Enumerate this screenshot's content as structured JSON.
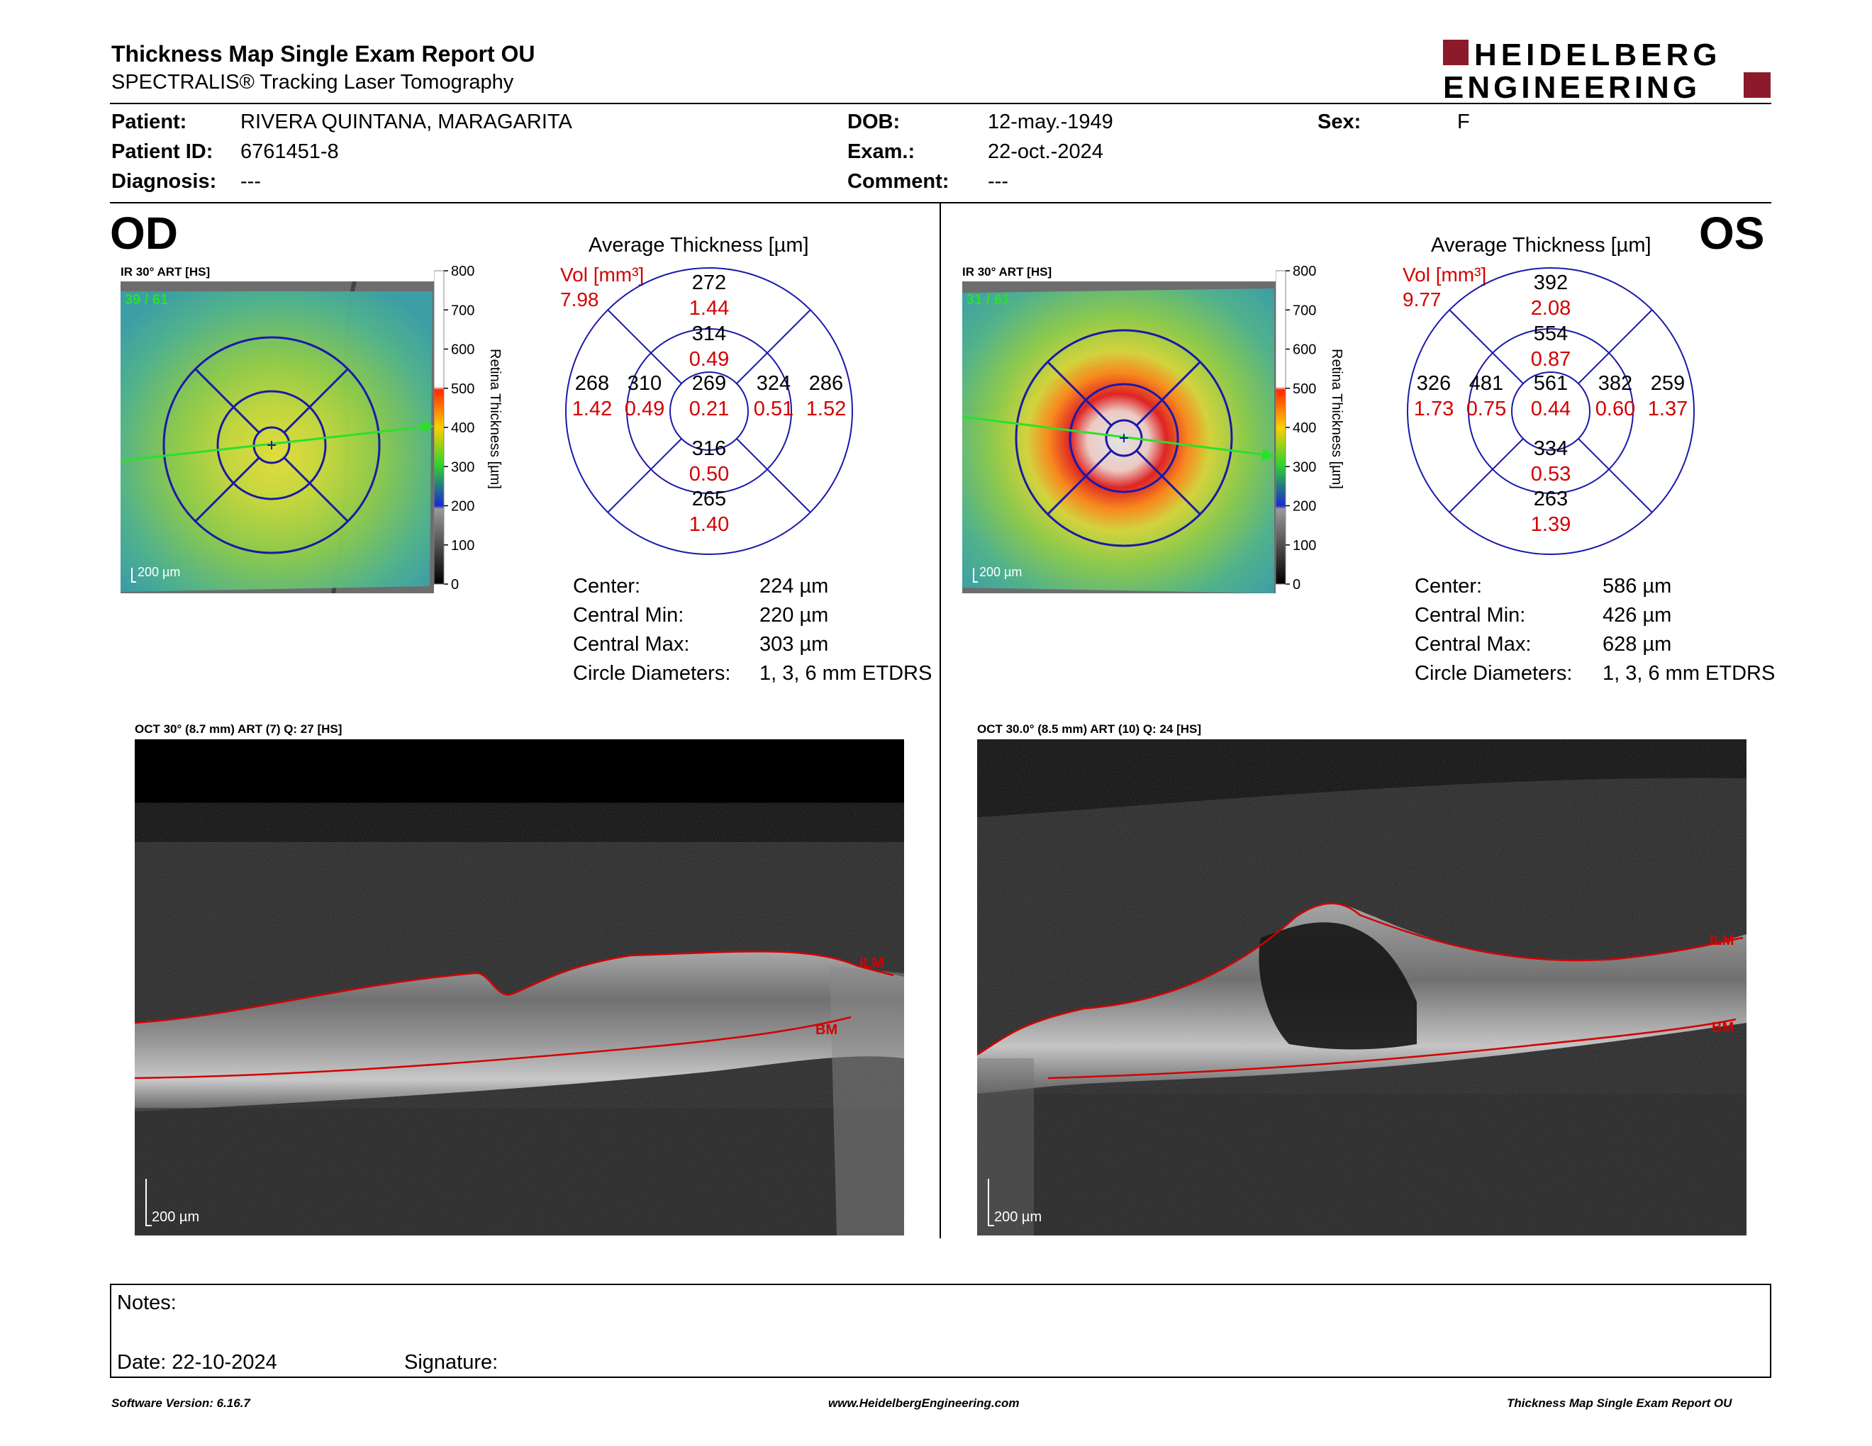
{
  "header": {
    "title": "Thickness Map Single Exam Report OU",
    "subtitle": "SPECTRALIS® Tracking Laser Tomography",
    "logo_line1": "HEIDELBERG",
    "logo_line2": "ENGINEERING",
    "colors": {
      "logo_red": "#8b1a2b",
      "vol_red": "#d40000",
      "grid_blue": "#1a1aa8",
      "ilm_red": "#d40000"
    }
  },
  "patient": {
    "patient_label": "Patient:",
    "patient_value": "RIVERA QUINTANA, MARAGARITA",
    "id_label": "Patient ID:",
    "id_value": "6761451-8",
    "diag_label": "Diagnosis:",
    "diag_value": "---",
    "dob_label": "DOB:",
    "dob_value": "12-may.-1949",
    "exam_label": "Exam.:",
    "exam_value": "22-oct.-2024",
    "comment_label": "Comment:",
    "comment_value": "---",
    "sex_label": "Sex:",
    "sex_value": "F"
  },
  "od": {
    "eye": "OD",
    "ir_label": "IR 30° ART [HS]",
    "frame_label": "39 / 61",
    "scale": "200 µm",
    "colorbar": {
      "ticks": [
        "800",
        "700",
        "600",
        "500",
        "400",
        "300",
        "200",
        "100",
        "0"
      ],
      "axis": "Retina Thickness [µm]"
    },
    "avg_title": "Average Thickness [µm]",
    "vol_label": "Vol [mm³]",
    "vol_total": "7.98",
    "etdrs": {
      "center": {
        "t": "269",
        "v": "0.21"
      },
      "inner_sup": {
        "t": "314",
        "v": "0.49"
      },
      "inner_inf": {
        "t": "316",
        "v": "0.50"
      },
      "inner_left": {
        "t": "310",
        "v": "0.49"
      },
      "inner_right": {
        "t": "324",
        "v": "0.51"
      },
      "outer_sup": {
        "t": "272",
        "v": "1.44"
      },
      "outer_inf": {
        "t": "265",
        "v": "1.40"
      },
      "outer_left": {
        "t": "268",
        "v": "1.42"
      },
      "outer_right": {
        "t": "286",
        "v": "1.52"
      }
    },
    "stats": [
      {
        "label": "Center:",
        "value": "224 µm"
      },
      {
        "label": "Central Min:",
        "value": "220 µm"
      },
      {
        "label": "Central Max:",
        "value": "303 µm"
      },
      {
        "label": "Circle Diameters:",
        "value": "1, 3, 6 mm ETDRS"
      }
    ],
    "oct_label": "OCT 30° (8.7 mm) ART (7) Q: 27 [HS]",
    "ilm": "ILM",
    "bm": "BM",
    "oct_scale": "200 µm"
  },
  "os": {
    "eye": "OS",
    "ir_label": "IR 30° ART [HS]",
    "frame_label": "31 / 61",
    "scale": "200 µm",
    "colorbar": {
      "ticks": [
        "800",
        "700",
        "600",
        "500",
        "400",
        "300",
        "200",
        "100",
        "0"
      ],
      "axis": "Retina Thickness [µm]"
    },
    "avg_title": "Average Thickness [µm]",
    "vol_label": "Vol [mm³]",
    "vol_total": "9.77",
    "etdrs": {
      "center": {
        "t": "561",
        "v": "0.44"
      },
      "inner_sup": {
        "t": "554",
        "v": "0.87"
      },
      "inner_inf": {
        "t": "334",
        "v": "0.53"
      },
      "inner_left": {
        "t": "481",
        "v": "0.75"
      },
      "inner_right": {
        "t": "382",
        "v": "0.60"
      },
      "outer_sup": {
        "t": "392",
        "v": "2.08"
      },
      "outer_inf": {
        "t": "263",
        "v": "1.39"
      },
      "outer_left": {
        "t": "326",
        "v": "1.73"
      },
      "outer_right": {
        "t": "259",
        "v": "1.37"
      }
    },
    "stats": [
      {
        "label": "Center:",
        "value": "586 µm"
      },
      {
        "label": "Central Min:",
        "value": "426 µm"
      },
      {
        "label": "Central Max:",
        "value": "628 µm"
      },
      {
        "label": "Circle Diameters:",
        "value": "1, 3, 6 mm ETDRS"
      }
    ],
    "oct_label": "OCT 30.0° (8.5 mm) ART (10) Q: 24 [HS]",
    "ilm": "ILM",
    "bm": "BM",
    "oct_scale": "200 µm"
  },
  "notes": {
    "notes_label": "Notes:",
    "date_label": "Date: 22-10-2024",
    "signature_label": "Signature:"
  },
  "footer": {
    "left": "Software Version: 6.16.7",
    "center": "www.HeidelbergEngineering.com",
    "right": "Thickness Map Single Exam Report OU"
  }
}
